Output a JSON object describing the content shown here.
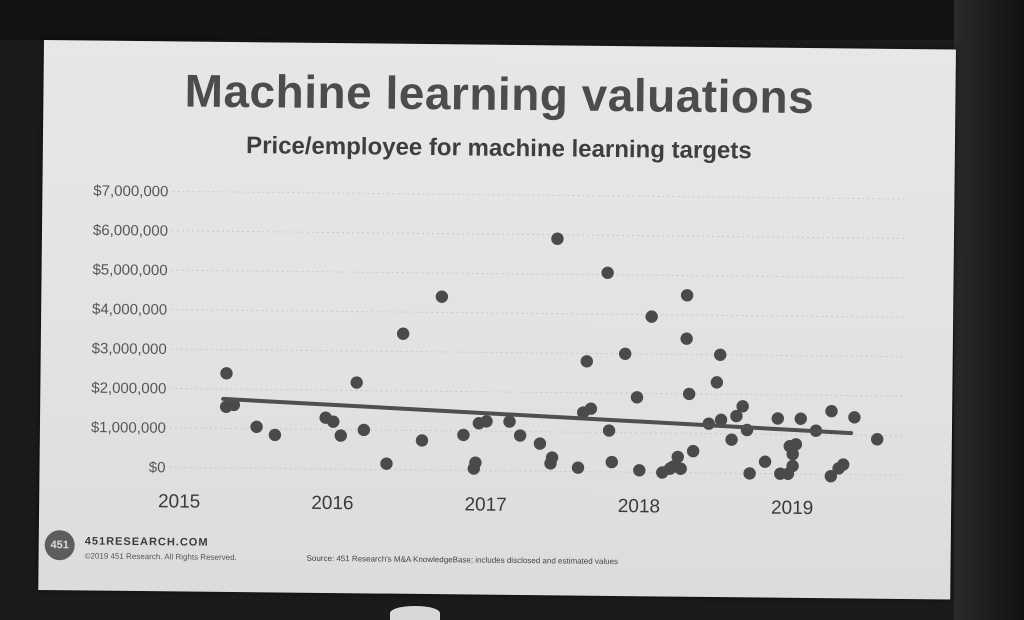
{
  "slide": {
    "title": "Machine learning valuations",
    "subtitle": "Price/employee for machine learning targets",
    "footer": {
      "logo_text": "451",
      "site": "451RESEARCH.COM",
      "copyright": "©2019 451 Research. All Rights Reserved.",
      "source": "Source: 451 Research's M&A KnowledgeBase; includes disclosed and estimated values"
    }
  },
  "colors": {
    "dot": "#4a4a4a",
    "trendline": "#4f4f4f",
    "gridline": "#c9c9c9"
  },
  "chart_data": {
    "type": "scatter",
    "title": "Price/employee for machine learning targets",
    "xlabel": "",
    "ylabel": "",
    "xlim": [
      2015,
      2019.45
    ],
    "ylim": [
      0,
      7000000
    ],
    "y_ticks": [
      0,
      1000000,
      2000000,
      3000000,
      4000000,
      5000000,
      6000000,
      7000000
    ],
    "y_tick_labels": [
      "$0",
      "$1,000,000",
      "$2,000,000",
      "$3,000,000",
      "$4,000,000",
      "$5,000,000",
      "$6,000,000",
      "$7,000,000"
    ],
    "x_ticks": [
      2015,
      2016,
      2017,
      2018,
      2019
    ],
    "x_tick_labels": [
      "2015",
      "2016",
      "2017",
      "2018",
      "2019"
    ],
    "grid": "horizontal dotted",
    "trendline": {
      "x": [
        2015.28,
        2019.38
      ],
      "y": [
        1750000,
        1050000
      ]
    },
    "points": [
      [
        2015.3,
        2400000
      ],
      [
        2015.3,
        1550000
      ],
      [
        2015.35,
        1600000
      ],
      [
        2015.5,
        1050000
      ],
      [
        2015.62,
        850000
      ],
      [
        2015.95,
        1300000
      ],
      [
        2016.0,
        1200000
      ],
      [
        2016.05,
        850000
      ],
      [
        2016.15,
        2200000
      ],
      [
        2016.2,
        1000000
      ],
      [
        2016.35,
        150000
      ],
      [
        2016.45,
        3450000
      ],
      [
        2016.58,
        750000
      ],
      [
        2016.7,
        4400000
      ],
      [
        2016.85,
        900000
      ],
      [
        2016.92,
        50000
      ],
      [
        2016.93,
        200000
      ],
      [
        2016.95,
        1200000
      ],
      [
        2017.0,
        1250000
      ],
      [
        2017.15,
        1250000
      ],
      [
        2017.22,
        900000
      ],
      [
        2017.35,
        700000
      ],
      [
        2017.42,
        200000
      ],
      [
        2017.43,
        350000
      ],
      [
        2017.45,
        5900000
      ],
      [
        2017.6,
        100000
      ],
      [
        2017.63,
        1500000
      ],
      [
        2017.65,
        2800000
      ],
      [
        2017.68,
        1600000
      ],
      [
        2017.78,
        5050000
      ],
      [
        2017.8,
        1050000
      ],
      [
        2017.82,
        250000
      ],
      [
        2017.9,
        3000000
      ],
      [
        2017.98,
        1900000
      ],
      [
        2018.0,
        50000
      ],
      [
        2018.07,
        3950000
      ],
      [
        2018.15,
        0
      ],
      [
        2018.2,
        100000
      ],
      [
        2018.22,
        150000
      ],
      [
        2018.25,
        400000
      ],
      [
        2018.27,
        100000
      ],
      [
        2018.3,
        4500000
      ],
      [
        2018.3,
        3400000
      ],
      [
        2018.32,
        2000000
      ],
      [
        2018.35,
        550000
      ],
      [
        2018.45,
        1250000
      ],
      [
        2018.5,
        2300000
      ],
      [
        2018.52,
        3000000
      ],
      [
        2018.53,
        1350000
      ],
      [
        2018.6,
        850000
      ],
      [
        2018.63,
        1450000
      ],
      [
        2018.67,
        1700000
      ],
      [
        2018.7,
        1100000
      ],
      [
        2018.72,
        0
      ],
      [
        2018.82,
        300000
      ],
      [
        2018.9,
        1400000
      ],
      [
        2018.92,
        0
      ],
      [
        2018.97,
        0
      ],
      [
        2018.98,
        700000
      ],
      [
        2019.0,
        500000
      ],
      [
        2019.0,
        200000
      ],
      [
        2019.02,
        750000
      ],
      [
        2019.05,
        1400000
      ],
      [
        2019.15,
        1100000
      ],
      [
        2019.25,
        1600000
      ],
      [
        2019.25,
        -50000
      ],
      [
        2019.3,
        150000
      ],
      [
        2019.33,
        250000
      ],
      [
        2019.4,
        1450000
      ],
      [
        2019.55,
        900000
      ]
    ]
  }
}
